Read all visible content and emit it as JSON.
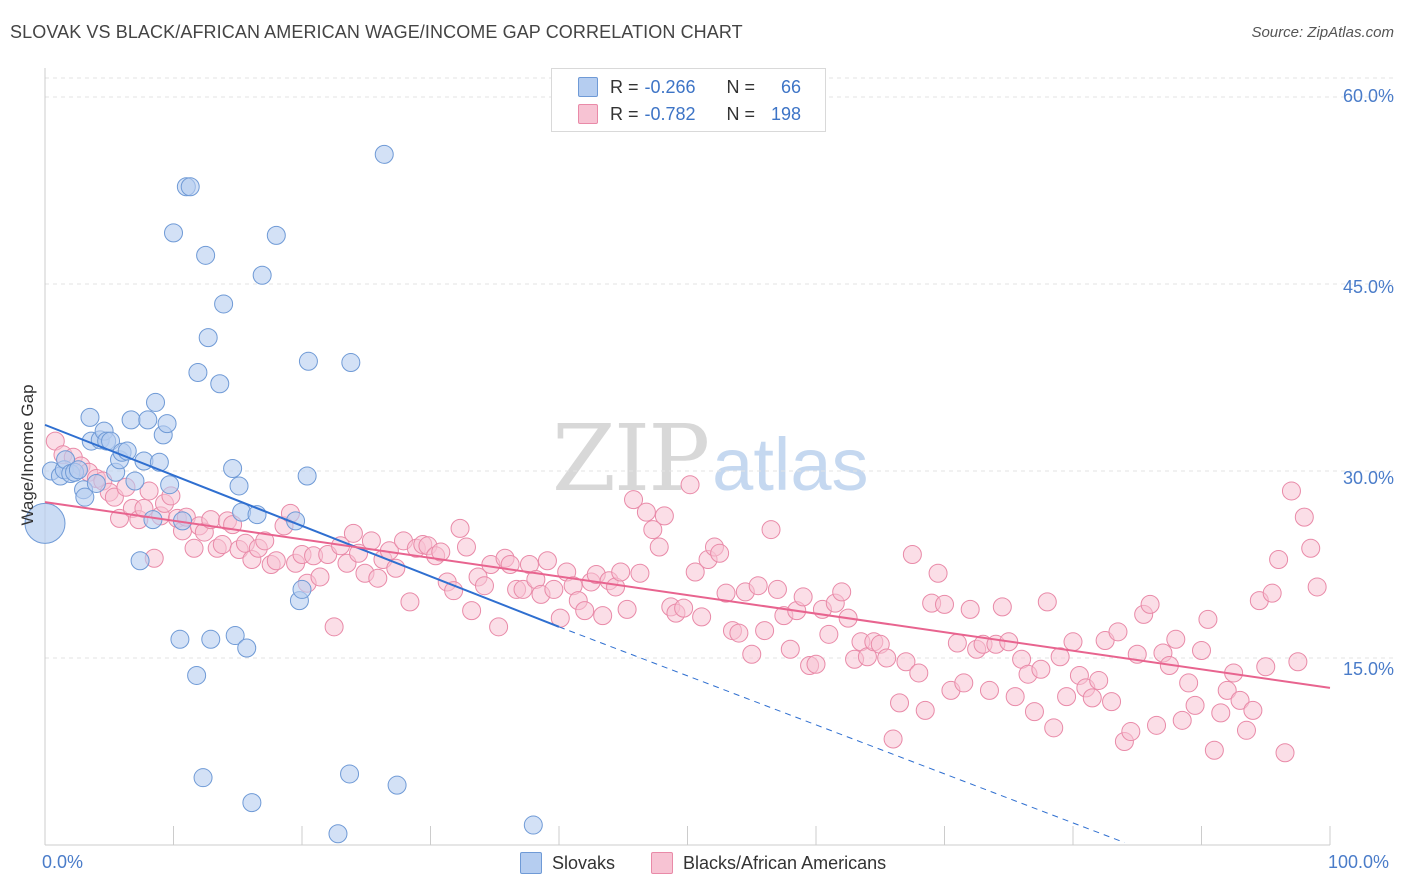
{
  "title": "SLOVAK VS BLACK/AFRICAN AMERICAN WAGE/INCOME GAP CORRELATION CHART",
  "source": "Source: ZipAtlas.com",
  "watermark": {
    "zip": "ZIP",
    "atlas": "atlas"
  },
  "legend": {
    "r_label": "R =",
    "n_label": "N =",
    "rows": [
      {
        "r": "-0.266",
        "n": "66"
      },
      {
        "r": "-0.782",
        "n": "198"
      }
    ]
  },
  "colors": {
    "slovak_fill": "#b5cdf0",
    "slovak_stroke": "#6f9ad6",
    "slovak_line": "#2f6fd0",
    "black_fill": "#f7c3d3",
    "black_stroke": "#e98aa8",
    "black_line": "#e8648f",
    "axis_text": "#4a7cc9",
    "grid": "#e3e3e3"
  },
  "chart_data": {
    "type": "scatter",
    "title": "SLOVAK VS BLACK/AFRICAN AMERICAN WAGE/INCOME GAP CORRELATION CHART",
    "xlabel": "",
    "ylabel": "Wage/Income Gap",
    "xlim": [
      0,
      100
    ],
    "ylim": [
      0,
      62
    ],
    "x_tick_labels": [
      "0.0%",
      "100.0%"
    ],
    "y_ticks": [
      15,
      30,
      45,
      60
    ],
    "y_tick_labels": [
      "15.0%",
      "30.0%",
      "45.0%",
      "60.0%"
    ],
    "grid": true,
    "legend_position": "top-center",
    "series": [
      {
        "name": "Slovaks",
        "R": -0.266,
        "N": 66,
        "trend": {
          "x": [
            0,
            40
          ],
          "y": [
            33.7,
            17.5
          ],
          "dashed_extension_to": [
            84,
            0.2
          ]
        },
        "points": [
          [
            0.5,
            30.0
          ],
          [
            1.2,
            29.6
          ],
          [
            1.5,
            30.1
          ],
          [
            1.6,
            30.9
          ],
          [
            2.0,
            29.8
          ],
          [
            2.3,
            29.9
          ],
          [
            2.6,
            30.1
          ],
          [
            3.0,
            28.5
          ],
          [
            3.1,
            27.9
          ],
          [
            3.5,
            34.3
          ],
          [
            3.6,
            32.4
          ],
          [
            4.0,
            29.0
          ],
          [
            4.3,
            32.5
          ],
          [
            4.6,
            33.2
          ],
          [
            4.8,
            32.4
          ],
          [
            5.1,
            32.4
          ],
          [
            5.5,
            29.9
          ],
          [
            5.8,
            30.9
          ],
          [
            6.0,
            31.5
          ],
          [
            6.4,
            31.6
          ],
          [
            6.7,
            34.1
          ],
          [
            7.0,
            29.2
          ],
          [
            7.4,
            22.8
          ],
          [
            7.7,
            30.8
          ],
          [
            8.0,
            34.1
          ],
          [
            8.4,
            26.1
          ],
          [
            8.6,
            35.5
          ],
          [
            8.9,
            30.7
          ],
          [
            9.2,
            32.9
          ],
          [
            9.5,
            33.8
          ],
          [
            9.7,
            28.9
          ],
          [
            10.0,
            49.1
          ],
          [
            10.5,
            16.5
          ],
          [
            10.7,
            26.0
          ],
          [
            11.0,
            52.8
          ],
          [
            11.3,
            52.8
          ],
          [
            11.8,
            13.6
          ],
          [
            11.9,
            37.9
          ],
          [
            12.3,
            5.4
          ],
          [
            12.5,
            47.3
          ],
          [
            12.7,
            40.7
          ],
          [
            12.9,
            16.5
          ],
          [
            13.6,
            37.0
          ],
          [
            13.9,
            43.4
          ],
          [
            14.6,
            30.2
          ],
          [
            14.8,
            16.8
          ],
          [
            15.1,
            28.8
          ],
          [
            15.3,
            26.7
          ],
          [
            15.7,
            15.8
          ],
          [
            16.1,
            3.4
          ],
          [
            16.5,
            26.5
          ],
          [
            16.9,
            45.7
          ],
          [
            18.0,
            48.9
          ],
          [
            19.5,
            26.0
          ],
          [
            19.8,
            19.6
          ],
          [
            20.0,
            20.5
          ],
          [
            20.4,
            29.6
          ],
          [
            20.5,
            38.8
          ],
          [
            22.8,
            0.9
          ],
          [
            23.7,
            5.7
          ],
          [
            23.8,
            38.7
          ],
          [
            26.4,
            55.4
          ],
          [
            27.4,
            4.8
          ],
          [
            38.0,
            1.6
          ]
        ]
      },
      {
        "name": "Blacks/African Americans",
        "R": -0.782,
        "N": 198,
        "trend": {
          "x": [
            0,
            100
          ],
          "y": [
            27.5,
            12.6
          ]
        },
        "points": [
          [
            0.8,
            32.4
          ],
          [
            1.4,
            31.3
          ],
          [
            2.2,
            31.1
          ],
          [
            2.8,
            30.4
          ],
          [
            3.4,
            29.9
          ],
          [
            4.0,
            29.4
          ],
          [
            4.5,
            29.2
          ],
          [
            5.0,
            28.3
          ],
          [
            5.4,
            27.9
          ],
          [
            5.8,
            26.2
          ],
          [
            6.3,
            28.7
          ],
          [
            6.8,
            27.0
          ],
          [
            7.3,
            26.1
          ],
          [
            7.7,
            27.0
          ],
          [
            8.1,
            28.4
          ],
          [
            8.5,
            23.0
          ],
          [
            9.0,
            26.4
          ],
          [
            9.3,
            27.4
          ],
          [
            9.8,
            28.0
          ],
          [
            10.3,
            26.2
          ],
          [
            10.7,
            25.2
          ],
          [
            11.0,
            26.3
          ],
          [
            11.6,
            23.8
          ],
          [
            12.0,
            25.6
          ],
          [
            12.4,
            25.1
          ],
          [
            12.9,
            26.1
          ],
          [
            13.4,
            23.8
          ],
          [
            13.8,
            24.1
          ],
          [
            14.2,
            26.0
          ],
          [
            14.6,
            25.7
          ],
          [
            15.1,
            23.7
          ],
          [
            15.6,
            24.2
          ],
          [
            16.1,
            22.9
          ],
          [
            16.6,
            23.8
          ],
          [
            17.1,
            24.4
          ],
          [
            17.6,
            22.5
          ],
          [
            18.0,
            22.8
          ],
          [
            18.6,
            25.6
          ],
          [
            19.1,
            26.6
          ],
          [
            19.5,
            22.6
          ],
          [
            20.0,
            23.3
          ],
          [
            20.4,
            21.0
          ],
          [
            20.9,
            23.2
          ],
          [
            21.4,
            21.5
          ],
          [
            22.0,
            23.3
          ],
          [
            22.5,
            17.5
          ],
          [
            23.0,
            24.0
          ],
          [
            23.5,
            22.6
          ],
          [
            24.0,
            25.0
          ],
          [
            24.4,
            23.4
          ],
          [
            24.9,
            21.8
          ],
          [
            25.4,
            24.4
          ],
          [
            25.9,
            21.4
          ],
          [
            26.3,
            22.9
          ],
          [
            26.8,
            23.6
          ],
          [
            27.3,
            22.2
          ],
          [
            27.9,
            24.4
          ],
          [
            28.4,
            19.5
          ],
          [
            28.9,
            23.8
          ],
          [
            29.4,
            24.1
          ],
          [
            29.8,
            24.0
          ],
          [
            30.4,
            23.2
          ],
          [
            30.8,
            23.5
          ],
          [
            31.3,
            21.1
          ],
          [
            31.8,
            20.4
          ],
          [
            32.3,
            25.4
          ],
          [
            32.8,
            23.9
          ],
          [
            33.2,
            18.8
          ],
          [
            33.7,
            21.5
          ],
          [
            34.2,
            20.8
          ],
          [
            34.7,
            22.5
          ],
          [
            35.3,
            17.5
          ],
          [
            35.8,
            23.0
          ],
          [
            36.2,
            22.5
          ],
          [
            36.7,
            20.5
          ],
          [
            37.2,
            20.5
          ],
          [
            37.7,
            22.5
          ],
          [
            38.2,
            21.3
          ],
          [
            38.6,
            20.1
          ],
          [
            39.1,
            22.8
          ],
          [
            39.6,
            20.5
          ],
          [
            40.1,
            18.2
          ],
          [
            40.6,
            21.9
          ],
          [
            41.1,
            20.8
          ],
          [
            41.5,
            19.6
          ],
          [
            42.0,
            18.8
          ],
          [
            42.5,
            21.1
          ],
          [
            42.9,
            21.7
          ],
          [
            43.4,
            18.4
          ],
          [
            43.9,
            21.2
          ],
          [
            44.4,
            20.7
          ],
          [
            44.8,
            21.9
          ],
          [
            45.3,
            18.9
          ],
          [
            45.8,
            27.7
          ],
          [
            46.3,
            21.8
          ],
          [
            46.8,
            26.7
          ],
          [
            47.3,
            25.3
          ],
          [
            47.8,
            23.9
          ],
          [
            48.2,
            26.4
          ],
          [
            48.7,
            19.1
          ],
          [
            49.1,
            18.6
          ],
          [
            49.7,
            19.0
          ],
          [
            50.2,
            28.9
          ],
          [
            50.6,
            21.9
          ],
          [
            51.1,
            18.3
          ],
          [
            51.6,
            22.9
          ],
          [
            52.1,
            23.9
          ],
          [
            52.5,
            23.4
          ],
          [
            53.0,
            20.2
          ],
          [
            53.5,
            17.2
          ],
          [
            54.0,
            17.0
          ],
          [
            54.5,
            20.3
          ],
          [
            55.0,
            15.3
          ],
          [
            55.5,
            20.8
          ],
          [
            56.0,
            17.2
          ],
          [
            56.5,
            25.3
          ],
          [
            57.0,
            20.5
          ],
          [
            57.5,
            18.4
          ],
          [
            58.0,
            15.7
          ],
          [
            58.5,
            18.8
          ],
          [
            59.0,
            19.9
          ],
          [
            59.5,
            14.4
          ],
          [
            60.0,
            14.5
          ],
          [
            60.5,
            18.9
          ],
          [
            61.0,
            16.9
          ],
          [
            61.5,
            19.4
          ],
          [
            62.0,
            20.3
          ],
          [
            62.5,
            18.2
          ],
          [
            63.0,
            14.9
          ],
          [
            63.5,
            16.3
          ],
          [
            64.0,
            15.1
          ],
          [
            64.5,
            16.3
          ],
          [
            65.0,
            16.1
          ],
          [
            65.5,
            15.0
          ],
          [
            66.0,
            8.5
          ],
          [
            66.5,
            11.4
          ],
          [
            67.0,
            14.7
          ],
          [
            67.5,
            23.3
          ],
          [
            68.0,
            13.8
          ],
          [
            68.5,
            10.8
          ],
          [
            69.0,
            19.4
          ],
          [
            69.5,
            21.8
          ],
          [
            70.0,
            19.3
          ],
          [
            70.5,
            12.4
          ],
          [
            71.0,
            16.2
          ],
          [
            71.5,
            13.0
          ],
          [
            72.0,
            18.9
          ],
          [
            72.5,
            15.7
          ],
          [
            73.0,
            16.1
          ],
          [
            73.5,
            12.4
          ],
          [
            74.0,
            16.1
          ],
          [
            74.5,
            19.1
          ],
          [
            75.0,
            16.3
          ],
          [
            75.5,
            11.9
          ],
          [
            76.0,
            14.9
          ],
          [
            76.5,
            13.7
          ],
          [
            77.0,
            10.7
          ],
          [
            77.5,
            14.1
          ],
          [
            78.0,
            19.5
          ],
          [
            78.5,
            9.4
          ],
          [
            79.0,
            15.1
          ],
          [
            79.5,
            11.9
          ],
          [
            80.0,
            16.3
          ],
          [
            80.5,
            13.6
          ],
          [
            81.0,
            12.6
          ],
          [
            81.5,
            11.8
          ],
          [
            82.0,
            13.2
          ],
          [
            82.5,
            16.4
          ],
          [
            83.0,
            11.5
          ],
          [
            83.5,
            17.1
          ],
          [
            84.0,
            8.3
          ],
          [
            84.5,
            9.1
          ],
          [
            85.0,
            15.3
          ],
          [
            85.5,
            18.5
          ],
          [
            86.0,
            19.3
          ],
          [
            86.5,
            9.6
          ],
          [
            87.0,
            15.4
          ],
          [
            87.5,
            14.4
          ],
          [
            88.0,
            16.5
          ],
          [
            88.5,
            10.0
          ],
          [
            89.0,
            13.0
          ],
          [
            89.5,
            11.2
          ],
          [
            90.0,
            15.6
          ],
          [
            90.5,
            18.1
          ],
          [
            91.0,
            7.6
          ],
          [
            91.5,
            10.6
          ],
          [
            92.0,
            12.4
          ],
          [
            92.5,
            13.8
          ],
          [
            93.0,
            11.6
          ],
          [
            93.5,
            9.2
          ],
          [
            94.0,
            10.8
          ],
          [
            94.5,
            19.6
          ],
          [
            95.0,
            14.3
          ],
          [
            95.5,
            20.2
          ],
          [
            96.0,
            22.9
          ],
          [
            96.5,
            7.4
          ],
          [
            97.0,
            28.4
          ],
          [
            97.5,
            14.7
          ],
          [
            98.0,
            26.3
          ],
          [
            98.5,
            23.8
          ],
          [
            99.0,
            20.7
          ]
        ]
      }
    ]
  },
  "bottom_legend": [
    "Slovaks",
    "Blacks/African Americans"
  ]
}
